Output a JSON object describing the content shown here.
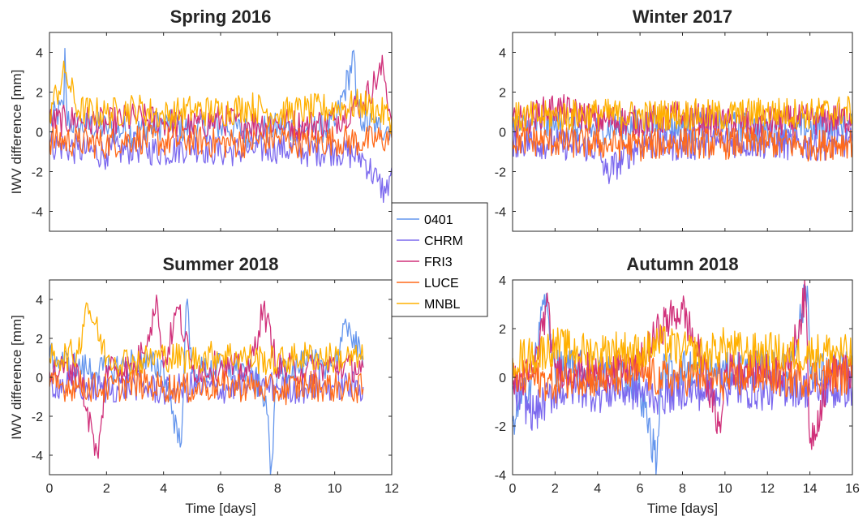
{
  "chart_data": [
    {
      "type": "line",
      "title": "Spring 2016",
      "xlabel": "",
      "ylabel": "IWV difference [mm]",
      "xlim": [
        0,
        12
      ],
      "ylim": [
        -5,
        5
      ],
      "xticks": [
        "",
        "",
        "",
        "",
        "",
        "",
        ""
      ],
      "yticks": [
        "-4",
        "-2",
        "0",
        "2",
        "4"
      ],
      "series": [
        {
          "name": "0401",
          "x": [
            0,
            0.5,
            0.55,
            0.6,
            1,
            2,
            3,
            4,
            5,
            6,
            7,
            8,
            9,
            10,
            10.7,
            10.75,
            11,
            11.5,
            12
          ],
          "y": [
            0.5,
            1.2,
            4.8,
            0.6,
            0.3,
            0.2,
            0,
            0.4,
            0.1,
            0.3,
            0,
            0.2,
            0.1,
            0.3,
            3.9,
            1.5,
            0.5,
            0.2,
            0.3
          ]
        },
        {
          "name": "CHRM",
          "x": [
            0,
            1,
            2,
            3,
            4,
            5,
            6,
            7,
            8,
            9,
            10,
            11,
            11.5,
            11.8,
            12
          ],
          "y": [
            -0.6,
            -0.9,
            -1.1,
            -0.8,
            -1,
            -0.7,
            -1,
            -0.9,
            -0.8,
            -1,
            -0.9,
            -1.3,
            -2.5,
            -3.1,
            -1.8
          ]
        },
        {
          "name": "FRI3",
          "x": [
            0,
            1,
            2,
            3,
            4,
            5,
            6,
            7,
            8,
            9,
            10,
            11,
            11.7,
            12
          ],
          "y": [
            0.5,
            0.6,
            0.4,
            0.7,
            0.5,
            0.3,
            0.6,
            0.4,
            0.5,
            0.3,
            0.6,
            1.5,
            3.2,
            0.5
          ]
        },
        {
          "name": "LUCE",
          "x": [
            0,
            1,
            2,
            3,
            4,
            5,
            6,
            7,
            8,
            9,
            10,
            11,
            12
          ],
          "y": [
            -0.4,
            -0.5,
            -0.6,
            -0.3,
            -0.5,
            -0.4,
            -0.6,
            -0.5,
            -0.3,
            -0.6,
            -0.4,
            -0.5,
            -0.3
          ]
        },
        {
          "name": "MNBL",
          "x": [
            0,
            0.55,
            1,
            2,
            3,
            4,
            5,
            6,
            7,
            8,
            9,
            10,
            11,
            12
          ],
          "y": [
            1,
            3,
            1.1,
            0.9,
            1.2,
            0.8,
            1.1,
            1,
            1.3,
            0.9,
            1.1,
            1.2,
            1.4,
            0.7
          ]
        }
      ]
    },
    {
      "type": "line",
      "title": "Winter 2017",
      "xlabel": "",
      "ylabel": "",
      "xlim": [
        0,
        16
      ],
      "ylim": [
        -5,
        5
      ],
      "xticks": [
        "",
        "",
        "",
        "",
        "",
        "",
        "",
        "",
        ""
      ],
      "yticks": [
        "-4",
        "-2",
        "0",
        "2",
        "4"
      ],
      "series": [
        {
          "name": "0401",
          "x": [
            0,
            2,
            4,
            6,
            8,
            10,
            12,
            14,
            16
          ],
          "y": [
            0.2,
            0.3,
            0.1,
            0.4,
            0.2,
            0.3,
            0.1,
            0.2,
            0.3
          ]
        },
        {
          "name": "CHRM",
          "x": [
            0,
            2,
            4,
            4.4,
            6,
            8,
            10,
            12,
            14,
            16
          ],
          "y": [
            -0.5,
            -0.6,
            -0.8,
            -2.1,
            -0.6,
            -0.7,
            -0.5,
            -0.6,
            -0.7,
            -0.5
          ]
        },
        {
          "name": "FRI3",
          "x": [
            0,
            2,
            4,
            6,
            8,
            10,
            12,
            14,
            16
          ],
          "y": [
            0.4,
            1.2,
            0.6,
            0.5,
            0.8,
            0.4,
            0.5,
            0.6,
            0.7
          ]
        },
        {
          "name": "LUCE",
          "x": [
            0,
            2,
            4,
            6,
            8,
            10,
            12,
            14,
            16
          ],
          "y": [
            -0.4,
            -0.5,
            -0.6,
            -0.7,
            -0.5,
            -0.6,
            -0.5,
            -0.7,
            -0.5
          ]
        },
        {
          "name": "MNBL",
          "x": [
            0,
            2,
            4,
            6,
            8,
            10,
            12,
            14,
            16
          ],
          "y": [
            0.7,
            0.8,
            0.9,
            0.8,
            0.9,
            0.8,
            1,
            0.9,
            1.1
          ]
        }
      ]
    },
    {
      "type": "line",
      "title": "Summer 2018",
      "xlabel": "Time [days]",
      "ylabel": "IWV difference [mm]",
      "xlim": [
        0,
        12
      ],
      "ylim": [
        -5,
        5
      ],
      "xticks": [
        "0",
        "2",
        "4",
        "6",
        "8",
        "10",
        "12"
      ],
      "yticks": [
        "-4",
        "-2",
        "0",
        "2",
        "4"
      ],
      "series": [
        {
          "name": "0401",
          "x": [
            0,
            1,
            2,
            3,
            4,
            4.6,
            4.8,
            5,
            6,
            7,
            7.6,
            7.75,
            8,
            9,
            10,
            10.5,
            10.9,
            11
          ],
          "y": [
            1,
            0.5,
            0.3,
            0.8,
            0.5,
            -3.7,
            4,
            0.2,
            0.5,
            0.3,
            -1,
            -5,
            0.4,
            0.6,
            0.8,
            2.8,
            1,
            0.5
          ]
        },
        {
          "name": "CHRM",
          "x": [
            0,
            1,
            2,
            3,
            4,
            5,
            6,
            7,
            8,
            9,
            10,
            11
          ],
          "y": [
            -0.3,
            -0.5,
            -0.6,
            -0.4,
            -0.7,
            -0.5,
            -0.6,
            -0.4,
            -0.5,
            -0.6,
            -0.4,
            -0.5
          ]
        },
        {
          "name": "FRI3",
          "x": [
            0,
            1,
            1.7,
            2,
            3,
            3.8,
            4,
            4.5,
            5,
            6,
            7,
            7.5,
            8,
            9,
            10,
            11
          ],
          "y": [
            0.3,
            0.5,
            -4.3,
            0.6,
            0.4,
            3.8,
            0.5,
            3.6,
            0.4,
            0.6,
            0.3,
            3.6,
            0.5,
            0.4,
            0.6,
            0.5
          ]
        },
        {
          "name": "LUCE",
          "x": [
            0,
            1,
            2,
            3,
            4,
            5,
            6,
            7,
            8,
            9,
            10,
            11
          ],
          "y": [
            -0.5,
            -0.4,
            -0.6,
            -0.3,
            -0.5,
            -0.6,
            -0.4,
            -0.5,
            -0.7,
            -0.4,
            -0.5,
            -0.6
          ]
        },
        {
          "name": "MNBL",
          "x": [
            0,
            1,
            1.3,
            2,
            3,
            4,
            5,
            6,
            7,
            8,
            9,
            10,
            11
          ],
          "y": [
            1,
            1.2,
            3.9,
            1,
            0.8,
            1.1,
            0.9,
            1.2,
            1,
            0.8,
            1.1,
            1,
            0.9
          ]
        }
      ]
    },
    {
      "type": "line",
      "title": "Autumn 2018",
      "xlabel": "Time [days]",
      "ylabel": "",
      "xlim": [
        0,
        16
      ],
      "ylim": [
        -4,
        4
      ],
      "xticks": [
        "0",
        "2",
        "4",
        "6",
        "8",
        "10",
        "12",
        "14",
        "16"
      ],
      "yticks": [
        "-4",
        "-2",
        "0",
        "2",
        "4"
      ],
      "series": [
        {
          "name": "0401",
          "x": [
            0,
            1,
            1.5,
            2,
            3,
            4,
            5,
            6,
            6.8,
            7,
            8,
            9,
            10,
            11,
            12,
            13,
            13.9,
            14,
            15,
            16
          ],
          "y": [
            -1.8,
            0.2,
            3.4,
            0.3,
            0.4,
            0.1,
            0.3,
            -0.5,
            -3.5,
            0.2,
            0.4,
            0.3,
            0.2,
            0.4,
            0.3,
            0.2,
            3.8,
            0.3,
            0.2,
            0.4
          ]
        },
        {
          "name": "CHRM",
          "x": [
            0,
            1,
            2,
            3,
            4,
            5,
            6,
            7,
            8,
            9,
            10,
            11,
            12,
            13,
            14,
            15,
            16
          ],
          "y": [
            -0.5,
            -1.5,
            -0.6,
            -0.4,
            -0.7,
            -0.5,
            -0.6,
            -0.8,
            -0.5,
            -0.6,
            -0.4,
            -0.5,
            -0.6,
            -0.4,
            -0.5,
            -0.6,
            -0.4
          ]
        },
        {
          "name": "FRI3",
          "x": [
            0,
            1,
            1.6,
            2,
            3,
            4,
            5,
            6,
            7,
            8,
            9,
            9.8,
            10,
            11,
            12,
            13,
            13.8,
            14,
            15,
            16
          ],
          "y": [
            -0.3,
            0.2,
            3,
            0.4,
            0.3,
            0.2,
            0.3,
            0.5,
            2.1,
            2.8,
            0.4,
            -2.3,
            0.3,
            0.4,
            0.2,
            0.3,
            3.4,
            -2.7,
            0.3,
            0.2
          ]
        },
        {
          "name": "LUCE",
          "x": [
            0,
            1,
            2,
            3,
            4,
            5,
            6,
            7,
            8,
            9,
            10,
            11,
            12,
            13,
            14,
            15,
            16
          ],
          "y": [
            -0.2,
            0,
            -0.3,
            0.1,
            -0.1,
            0,
            0.2,
            -0.1,
            0,
            0.1,
            -0.2,
            0,
            0.1,
            -0.1,
            0,
            0.1,
            0
          ]
        },
        {
          "name": "MNBL",
          "x": [
            0,
            1,
            2,
            3,
            4,
            5,
            6,
            7,
            8,
            9,
            10,
            11,
            12,
            13,
            14,
            15,
            16
          ],
          "y": [
            0.8,
            0.9,
            1.3,
            1.1,
            1,
            1.2,
            1,
            1.4,
            1.1,
            0.9,
            1.3,
            1,
            1.1,
            0.9,
            1,
            1.1,
            0.9
          ]
        }
      ]
    }
  ],
  "legend": {
    "entries": [
      "0401",
      "CHRM",
      "FRI3",
      "LUCE",
      "MNBL"
    ]
  },
  "colors": {
    "0401": "#6495ed",
    "CHRM": "#7b68ee",
    "FRI3": "#d0307a",
    "LUCE": "#ff6a1a",
    "MNBL": "#ffb000"
  }
}
